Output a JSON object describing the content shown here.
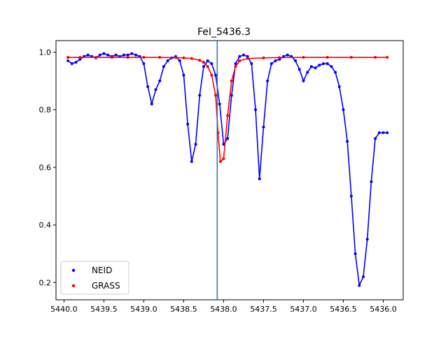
{
  "chart_data": {
    "type": "scatter",
    "title": "FeI_5436.3",
    "xlabel": "",
    "ylabel": "",
    "x_inverted": true,
    "xlim": [
      5440.1,
      5435.75
    ],
    "ylim": [
      0.14,
      1.04
    ],
    "xticks": [
      5440.0,
      5439.5,
      5439.0,
      5438.5,
      5438.0,
      5437.5,
      5437.0,
      5436.5,
      5436.0
    ],
    "xtick_labels": [
      "5440.0",
      "5439.5",
      "5439.0",
      "5438.5",
      "5438.0",
      "5437.5",
      "5437.0",
      "5436.5",
      "5436.0"
    ],
    "yticks": [
      0.2,
      0.4,
      0.6,
      0.8,
      1.0
    ],
    "ytick_labels": [
      "0.2",
      "0.4",
      "0.6",
      "0.8",
      "1.0"
    ],
    "vline_x": 5438.08,
    "legend_position": "lower-left",
    "series": [
      {
        "name": "NEID",
        "color": "#0000ff",
        "style": "line+markers",
        "x": [
          5439.95,
          5439.9,
          5439.85,
          5439.8,
          5439.75,
          5439.7,
          5439.65,
          5439.6,
          5439.55,
          5439.5,
          5439.45,
          5439.4,
          5439.35,
          5439.3,
          5439.25,
          5439.2,
          5439.15,
          5439.1,
          5439.05,
          5439.0,
          5438.95,
          5438.9,
          5438.85,
          5438.8,
          5438.75,
          5438.7,
          5438.65,
          5438.6,
          5438.55,
          5438.5,
          5438.45,
          5438.4,
          5438.35,
          5438.3,
          5438.25,
          5438.2,
          5438.15,
          5438.1,
          5438.05,
          5438.0,
          5437.95,
          5437.9,
          5437.85,
          5437.8,
          5437.75,
          5437.7,
          5437.65,
          5437.6,
          5437.55,
          5437.5,
          5437.45,
          5437.4,
          5437.35,
          5437.3,
          5437.25,
          5437.2,
          5437.15,
          5437.1,
          5437.05,
          5437.0,
          5436.95,
          5436.9,
          5436.85,
          5436.8,
          5436.75,
          5436.7,
          5436.65,
          5436.6,
          5436.55,
          5436.5,
          5436.45,
          5436.4,
          5436.35,
          5436.3,
          5436.25,
          5436.2,
          5436.15,
          5436.1,
          5436.05,
          5436.0,
          5435.95
        ],
        "y": [
          0.97,
          0.96,
          0.965,
          0.975,
          0.985,
          0.99,
          0.985,
          0.98,
          0.99,
          0.995,
          0.99,
          0.985,
          0.99,
          0.985,
          0.99,
          0.99,
          0.995,
          0.99,
          0.985,
          0.96,
          0.88,
          0.82,
          0.87,
          0.9,
          0.95,
          0.97,
          0.98,
          0.985,
          0.97,
          0.92,
          0.75,
          0.62,
          0.68,
          0.85,
          0.95,
          0.97,
          0.96,
          0.92,
          0.82,
          0.68,
          0.7,
          0.85,
          0.96,
          0.985,
          0.99,
          0.985,
          0.96,
          0.8,
          0.56,
          0.74,
          0.9,
          0.96,
          0.97,
          0.975,
          0.985,
          0.99,
          0.985,
          0.97,
          0.94,
          0.9,
          0.93,
          0.95,
          0.945,
          0.955,
          0.96,
          0.96,
          0.95,
          0.93,
          0.88,
          0.8,
          0.69,
          0.5,
          0.3,
          0.19,
          0.22,
          0.35,
          0.55,
          0.7,
          0.72,
          0.72,
          0.72
        ]
      },
      {
        "name": "GRASS",
        "color": "#ff0000",
        "style": "line+markers",
        "x": [
          5439.95,
          5439.8,
          5439.6,
          5439.4,
          5439.2,
          5439.0,
          5438.8,
          5438.6,
          5438.5,
          5438.4,
          5438.3,
          5438.25,
          5438.2,
          5438.15,
          5438.1,
          5438.07,
          5438.04,
          5438.0,
          5437.95,
          5437.9,
          5437.85,
          5437.8,
          5437.7,
          5437.5,
          5437.3,
          5437.0,
          5436.7,
          5436.4,
          5436.1,
          5435.95
        ],
        "y": [
          0.982,
          0.982,
          0.982,
          0.982,
          0.982,
          0.982,
          0.982,
          0.981,
          0.98,
          0.978,
          0.972,
          0.965,
          0.95,
          0.92,
          0.85,
          0.72,
          0.62,
          0.63,
          0.78,
          0.9,
          0.95,
          0.97,
          0.978,
          0.98,
          0.981,
          0.982,
          0.982,
          0.982,
          0.982,
          0.982
        ]
      }
    ]
  }
}
